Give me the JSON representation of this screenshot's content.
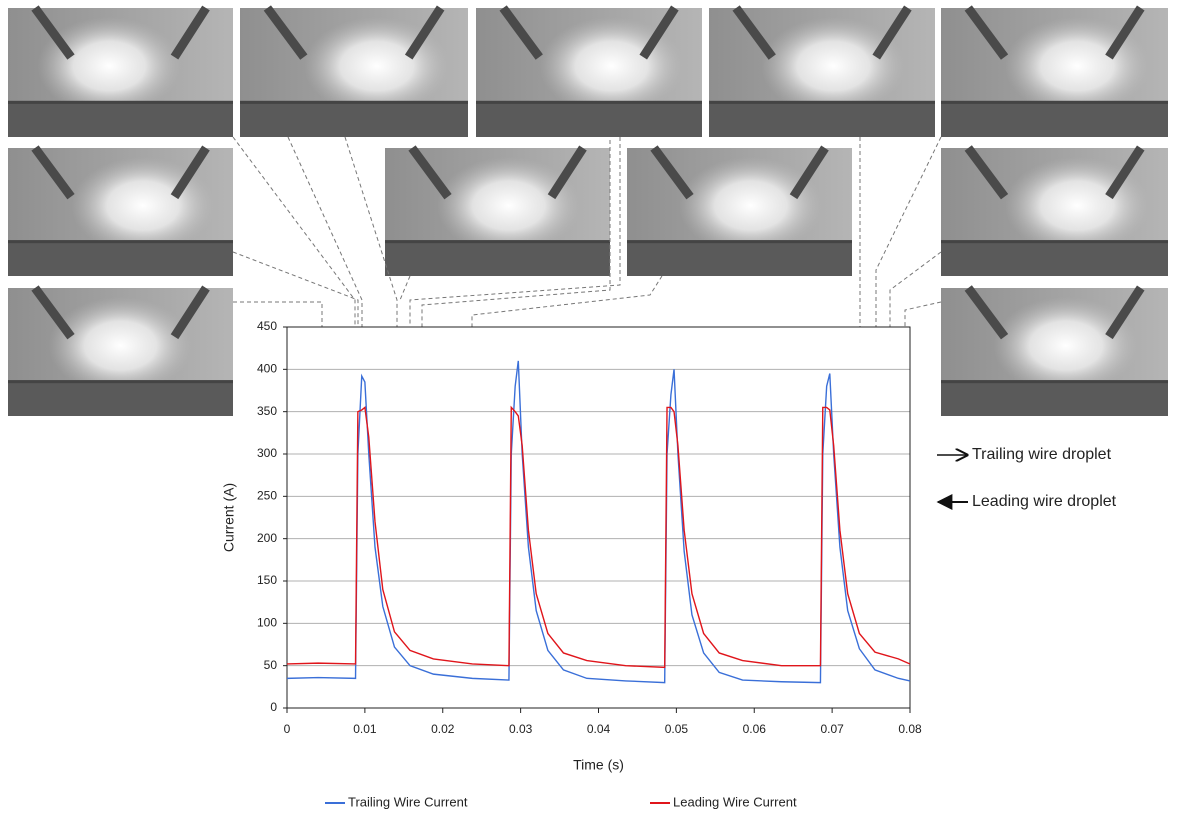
{
  "chart_data": {
    "type": "line",
    "x_label": "Time (s)",
    "y_label": "Current (A)",
    "x": [
      0,
      0.004,
      0.0088,
      0.0091,
      0.0096,
      0.01,
      0.0105,
      0.0113,
      0.0123,
      0.0138,
      0.0158,
      0.0188,
      0.0238,
      0.0285,
      0.0288,
      0.0293,
      0.0297,
      0.0302,
      0.031,
      0.032,
      0.0335,
      0.0355,
      0.0385,
      0.0435,
      0.0485,
      0.0488,
      0.0493,
      0.0497,
      0.0502,
      0.051,
      0.052,
      0.0535,
      0.0555,
      0.0585,
      0.0635,
      0.0685,
      0.0688,
      0.0693,
      0.0697,
      0.0702,
      0.071,
      0.072,
      0.0735,
      0.0755,
      0.0785,
      0.08
    ],
    "series": [
      {
        "name": "Trailing Wire Current",
        "color": "#3a6fd8",
        "values": [
          35,
          36,
          35,
          300,
          392,
          385,
          300,
          190,
          120,
          72,
          50,
          40,
          35,
          33,
          300,
          380,
          410,
          300,
          190,
          115,
          68,
          45,
          35,
          32,
          30,
          300,
          370,
          400,
          300,
          185,
          110,
          65,
          42,
          33,
          31,
          30,
          300,
          380,
          395,
          300,
          190,
          115,
          70,
          45,
          35,
          32
        ]
      },
      {
        "name": "Leading Wire Current",
        "color": "#e0151b",
        "values": [
          52,
          53,
          52,
          350,
          352,
          355,
          320,
          220,
          140,
          90,
          68,
          58,
          52,
          50,
          355,
          350,
          345,
          310,
          210,
          135,
          88,
          65,
          56,
          50,
          48,
          355,
          355,
          350,
          310,
          210,
          135,
          88,
          65,
          56,
          50,
          50,
          355,
          355,
          352,
          310,
          210,
          135,
          88,
          66,
          58,
          52
        ]
      }
    ],
    "xlim": [
      0,
      0.08
    ],
    "xticks": [
      0,
      0.01,
      0.02,
      0.03,
      0.04,
      0.05,
      0.06,
      0.07,
      0.08
    ],
    "ylim": [
      0,
      450
    ],
    "yticks": [
      0,
      50,
      100,
      150,
      200,
      250,
      300,
      350,
      400,
      450
    ],
    "grid": true,
    "annotations": [
      "Trailing wire droplet",
      "Leading wire droplet"
    ]
  }
}
